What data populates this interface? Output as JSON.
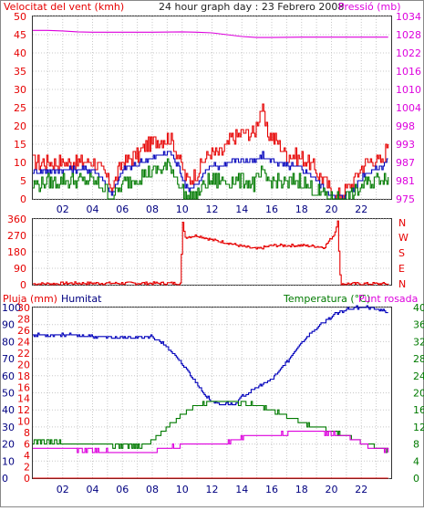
{
  "colors": {
    "red": "#e60000",
    "blue": "#0000bb",
    "green": "#007a00",
    "magenta": "#dd00dd",
    "navy": "#000080",
    "dark": "#222222"
  },
  "header": {
    "wind_label": "Velocitat del vent (kmh)",
    "title": "24 hour graph day : 23 Febrero 2008",
    "pressure_label": "Pressió (mb)"
  },
  "direction_letters": [
    "N",
    "W",
    "S",
    "E",
    "N"
  ],
  "bottom_labels": {
    "rain": "Pluja (mm)",
    "humidity": "Humitat",
    "temperature": "Temperatura (°C)",
    "dewpoint": "Punt rosada"
  },
  "chart_data": [
    {
      "type": "line",
      "x_ticks": [
        "02",
        "04",
        "06",
        "08",
        "10",
        "12",
        "14",
        "16",
        "18",
        "20",
        "22"
      ],
      "ylim": [
        0,
        50
      ],
      "y_ticks": [
        "0",
        "5",
        "10",
        "15",
        "20",
        "25",
        "30",
        "35",
        "40",
        "45",
        "50"
      ],
      "y2lim": [
        975,
        1034
      ],
      "y2_ticks": [
        "975",
        "981",
        "987",
        "993",
        "998",
        "1004",
        "1010",
        "1016",
        "1022",
        "1028",
        "1034"
      ],
      "series": [
        {
          "name": "Velocitat del vent (kmh)",
          "axis": "left",
          "color": "red",
          "x": [
            0,
            2,
            4,
            4.8,
            5.3,
            6,
            7,
            7.7,
            8.5,
            9.2,
            9.7,
            10.3,
            11,
            11.5,
            12,
            12.5,
            13.2,
            14,
            14.8,
            15.3,
            15.7,
            16.3,
            17,
            17.5,
            18,
            18.5,
            19.5,
            20.2,
            20.8,
            21.5,
            22.2,
            22.8,
            23.4,
            23.8
          ],
          "y": [
            10,
            10,
            10,
            7,
            3,
            10,
            12,
            15,
            16,
            17,
            12,
            5,
            7,
            11,
            13,
            12,
            16,
            18,
            18,
            25,
            18,
            16,
            12,
            12,
            11,
            10,
            5,
            0,
            2,
            5,
            10,
            11,
            10,
            16
          ]
        },
        {
          "name": "blue",
          "axis": "left",
          "color": "blue",
          "x": [
            0,
            2,
            4,
            4.8,
            5.3,
            6,
            7,
            7.7,
            8.5,
            9.2,
            9.7,
            10.3,
            11,
            11.5,
            12,
            12.5,
            13.2,
            14,
            14.8,
            15.3,
            15.7,
            16.3,
            17,
            17.5,
            18,
            18.5,
            19.5,
            20.2,
            20.8,
            21.5,
            22.2,
            22.8,
            23.4,
            23.8
          ],
          "y": [
            7.5,
            8,
            8,
            5,
            1,
            8,
            9.5,
            11,
            12,
            13,
            9,
            3,
            4,
            7,
            9,
            9,
            10,
            11,
            10,
            12,
            11,
            10,
            9,
            9,
            8,
            7,
            3,
            0,
            1,
            3,
            7,
            8,
            9,
            11
          ]
        },
        {
          "name": "green",
          "axis": "left",
          "color": "green",
          "x": [
            0,
            2,
            4,
            4.8,
            5.3,
            6,
            7,
            7.7,
            8.5,
            9.2,
            9.7,
            10.3,
            11,
            11.5,
            12,
            12.5,
            13.2,
            14,
            14.8,
            15.3,
            15.7,
            16.3,
            17,
            17.5,
            18,
            18.5,
            19.5,
            20.2,
            20.8,
            21.5,
            22.2,
            22.8,
            23.4,
            23.8
          ],
          "y": [
            4,
            5,
            5,
            3,
            0,
            4,
            6,
            7,
            8,
            9,
            5,
            0,
            1,
            4,
            5,
            5,
            5,
            5,
            4,
            7,
            5,
            5,
            4,
            5,
            5,
            3,
            1,
            0,
            0,
            1,
            4,
            5,
            6,
            6
          ]
        },
        {
          "name": "Pressió (mb)",
          "axis": "right",
          "color": "magenta",
          "x": [
            0,
            1,
            2,
            3,
            4,
            6,
            8,
            10,
            11,
            12,
            13,
            14,
            15,
            16,
            18,
            20,
            22,
            23.8
          ],
          "y": [
            1029.5,
            1029.5,
            1029.3,
            1029,
            1028.9,
            1028.9,
            1028.9,
            1029,
            1028.9,
            1028.7,
            1028.1,
            1027.5,
            1027.2,
            1027.2,
            1027.3,
            1027.3,
            1027.3,
            1027.3
          ]
        }
      ]
    },
    {
      "type": "line",
      "x_ticks": [
        "02",
        "04",
        "06",
        "08",
        "10",
        "12",
        "14",
        "16",
        "18",
        "20",
        "22"
      ],
      "ylim": [
        0,
        360
      ],
      "y_ticks": [
        "0",
        "90",
        "180",
        "270",
        "360"
      ],
      "series": [
        {
          "name": "direction",
          "color": "red",
          "x": [
            0,
            1,
            1.5,
            2,
            9.9,
            10,
            10.2,
            11,
            12,
            13,
            14,
            15,
            16,
            17,
            18,
            19,
            19.5,
            20.2,
            20.4,
            20.5,
            20.6,
            23.8
          ],
          "y": [
            5,
            5,
            5,
            8,
            8,
            350,
            260,
            270,
            245,
            230,
            210,
            195,
            215,
            215,
            215,
            210,
            205,
            280,
            355,
            150,
            5,
            5
          ]
        }
      ]
    },
    {
      "type": "line",
      "x_ticks": [
        "02",
        "04",
        "06",
        "08",
        "10",
        "12",
        "14",
        "16",
        "18",
        "20",
        "22"
      ],
      "ylim": [
        0,
        100
      ],
      "y_ticks": [
        "0",
        "10",
        "20",
        "30",
        "40",
        "50",
        "60",
        "70",
        "80",
        "90",
        "100"
      ],
      "y_ticks_inner": [
        "0",
        "2",
        "4",
        "6",
        "8",
        "10",
        "12",
        "14",
        "16",
        "18",
        "20",
        "22",
        "24",
        "26",
        "28",
        "30"
      ],
      "y2lim": [
        0,
        40
      ],
      "y2_ticks": [
        "0",
        "4",
        "8",
        "12",
        "16",
        "20",
        "24",
        "28",
        "32",
        "36",
        "40"
      ],
      "series": [
        {
          "name": "Humitat",
          "axis": "left",
          "color": "blue",
          "x": [
            0,
            2,
            4,
            6,
            8,
            9,
            10,
            11,
            11.5,
            12,
            12.5,
            13,
            13.5,
            14,
            15,
            16,
            17,
            18,
            19,
            20,
            21,
            21.5,
            22,
            22.5,
            23,
            23.5,
            23.8
          ],
          "y": [
            84,
            84,
            83,
            82,
            83,
            77,
            67,
            55,
            49,
            45,
            43,
            44,
            43,
            48,
            53,
            58,
            68,
            80,
            88,
            95,
            99,
            100,
            100,
            100,
            99,
            98,
            97
          ]
        },
        {
          "name": "Temperatura (°C)",
          "axis": "right",
          "color": "green",
          "x": [
            0,
            2,
            4,
            5,
            6,
            7,
            8,
            9,
            10,
            11,
            12,
            13,
            14,
            15,
            16,
            17,
            18,
            19,
            20,
            21,
            22,
            23,
            23.8
          ],
          "y": [
            8.5,
            8.3,
            8,
            7.8,
            7.4,
            7.5,
            8.5,
            12,
            15,
            17,
            18,
            18,
            17.5,
            17.2,
            16,
            14.5,
            13,
            12,
            11,
            10,
            8.4,
            7.2,
            6.5
          ]
        },
        {
          "name": "Punt rosada",
          "axis": "right",
          "color": "magenta",
          "x": [
            0,
            2,
            4,
            6,
            8,
            9,
            10,
            11,
            12,
            13,
            14,
            15,
            16,
            17,
            18,
            19,
            20,
            21,
            22,
            23,
            23.8
          ],
          "y": [
            7,
            6.8,
            6.4,
            6.2,
            6.3,
            7.2,
            7.8,
            8.2,
            8.2,
            8.3,
            9.5,
            10,
            10.2,
            10.5,
            11,
            10.8,
            10.4,
            9.8,
            8,
            7,
            6.3
          ]
        },
        {
          "name": "Pluja (mm)",
          "axis": "inner",
          "color": "red",
          "x": [
            0,
            23.8
          ],
          "y": [
            0,
            0
          ]
        }
      ]
    }
  ]
}
